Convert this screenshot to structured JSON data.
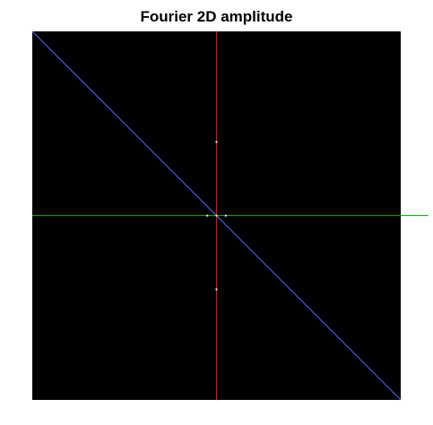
{
  "chart_data": {
    "type": "heatmap",
    "title": "Fourier 2D amplitude",
    "xlabel": "",
    "ylabel": "",
    "background_color": "#000000",
    "extent": {
      "x": [
        -1,
        1
      ],
      "y": [
        -1,
        1
      ]
    },
    "overlay_lines": [
      {
        "color": "#ff0000",
        "points": [
          [
            0,
            -1
          ],
          [
            0,
            1
          ]
        ]
      },
      {
        "color": "#00aa00",
        "points": [
          [
            -1,
            0
          ],
          [
            1.15,
            0
          ]
        ]
      },
      {
        "color": "#4d6bff",
        "points": [
          [
            -1,
            1
          ],
          [
            1,
            -1
          ]
        ]
      }
    ],
    "peaks": [
      {
        "x": 0,
        "y": 0.4,
        "color": "#ffffff"
      },
      {
        "x": 0,
        "y": -0.4,
        "color": "#ffffff"
      },
      {
        "x": -0.05,
        "y": 0,
        "color": "#ffffff"
      },
      {
        "x": 0.05,
        "y": 0,
        "color": "#ffffff"
      },
      {
        "x": 0,
        "y": 0,
        "color": "#ffffff"
      }
    ]
  }
}
